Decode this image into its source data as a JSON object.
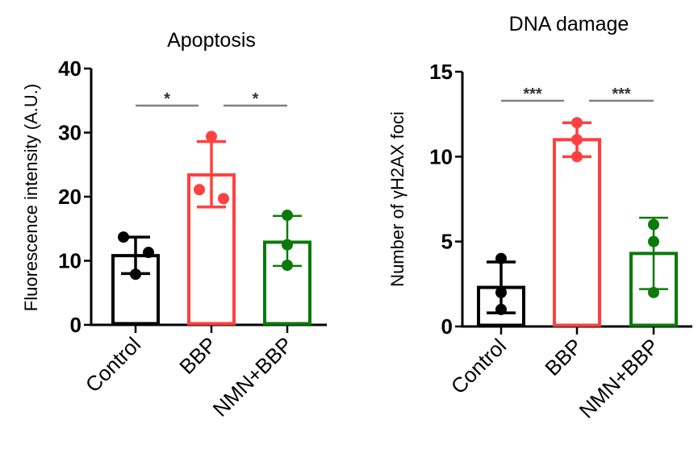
{
  "chart_data": [
    {
      "type": "bar",
      "title": "Apoptosis",
      "xlabel": "",
      "ylabel": "Fluorescence intensity (A.U.)",
      "ylim": [
        0,
        40
      ],
      "yticks": [
        0,
        10,
        20,
        30,
        40
      ],
      "grid": false,
      "legend": "none",
      "categories": [
        "Control",
        "BBP",
        "NMN+BBP"
      ],
      "colors": [
        "#000000",
        "#ff4040",
        "#0a7a0a"
      ],
      "means": [
        10.8,
        23.4,
        12.9
      ],
      "error_low": [
        8.0,
        18.4,
        9.2
      ],
      "error_high": [
        13.7,
        28.6,
        17.0
      ],
      "points": [
        [
          13.7,
          11.3,
          7.9
        ],
        [
          29.4,
          21.1,
          19.7
        ],
        [
          17.1,
          12.5,
          9.3
        ]
      ],
      "significance": [
        {
          "from": "Control",
          "to": "BBP",
          "label": "*"
        },
        {
          "from": "BBP",
          "to": "NMN+BBP",
          "label": "*"
        }
      ]
    },
    {
      "type": "bar",
      "title": "DNA damage",
      "xlabel": "",
      "ylabel": "Number of γH2AX foci",
      "ylim": [
        0,
        15
      ],
      "yticks": [
        0,
        5,
        10,
        15
      ],
      "grid": false,
      "legend": "none",
      "categories": [
        "Control",
        "BBP",
        "NMN+BBP"
      ],
      "colors": [
        "#000000",
        "#ff4040",
        "#0a7a0a"
      ],
      "means": [
        2.3,
        11.0,
        4.3
      ],
      "error_low": [
        0.8,
        10.0,
        2.2
      ],
      "error_high": [
        3.8,
        12.0,
        6.4
      ],
      "points": [
        [
          4.0,
          2.0,
          1.0
        ],
        [
          12.0,
          11.0,
          10.0
        ],
        [
          6.0,
          5.0,
          2.0
        ]
      ],
      "significance": [
        {
          "from": "Control",
          "to": "BBP",
          "label": "***"
        },
        {
          "from": "BBP",
          "to": "NMN+BBP",
          "label": "***"
        }
      ]
    }
  ]
}
